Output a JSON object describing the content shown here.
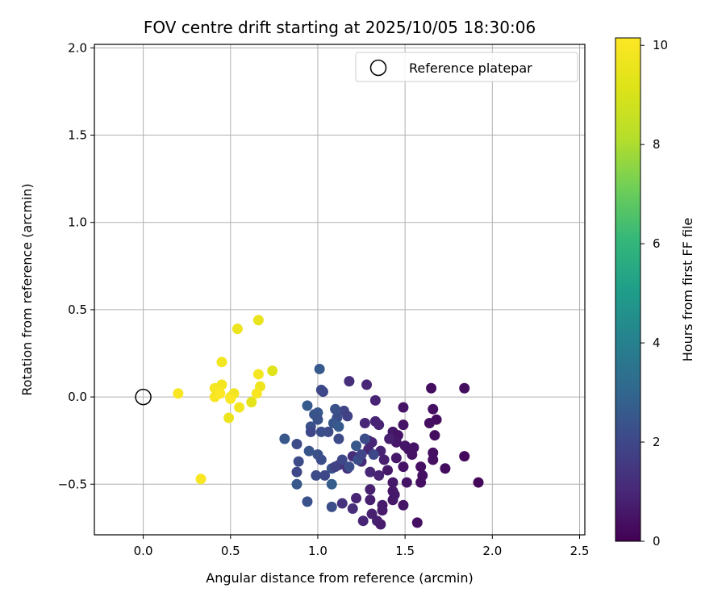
{
  "chart_data": {
    "type": "scatter",
    "title": "FOV centre drift starting at 2025/10/05 18:30:06",
    "xlabel": "Angular distance from reference (arcmin)",
    "ylabel": "Rotation from reference (arcmin)",
    "xlim": [
      -0.28,
      2.53
    ],
    "ylim": [
      -0.79,
      2.02
    ],
    "xticks": [
      0.0,
      0.5,
      1.0,
      1.5,
      2.0,
      2.5
    ],
    "xtick_labels": [
      "0.0",
      "0.5",
      "1.0",
      "1.5",
      "2.0",
      "2.5"
    ],
    "yticks": [
      -0.5,
      0.0,
      0.5,
      1.0,
      1.5,
      2.0
    ],
    "ytick_labels": [
      "−0.5",
      "0.0",
      "0.5",
      "1.0",
      "1.5",
      "2.0"
    ],
    "grid": true,
    "legend": {
      "position": "top-right",
      "entries": [
        "Reference platepar"
      ]
    },
    "reference": {
      "x": 0.0,
      "y": 0.0,
      "label": "Reference platepar"
    },
    "colorbar": {
      "label": "Hours from first FF file",
      "range": [
        0,
        10.15
      ],
      "ticks": [
        0,
        2,
        4,
        6,
        8,
        10
      ],
      "tick_labels": [
        "0",
        "2",
        "4",
        "6",
        "8",
        "10"
      ],
      "colormap": "viridis"
    },
    "points": [
      {
        "x": 1.65,
        "y": 0.05,
        "h": 0.3
      },
      {
        "x": 1.84,
        "y": 0.05,
        "h": 0.3
      },
      {
        "x": 1.49,
        "y": -0.06,
        "h": 0.5
      },
      {
        "x": 1.66,
        "y": -0.07,
        "h": 0.4
      },
      {
        "x": 1.68,
        "y": -0.13,
        "h": 0.3
      },
      {
        "x": 1.64,
        "y": -0.15,
        "h": 0.4
      },
      {
        "x": 1.49,
        "y": -0.16,
        "h": 0.5
      },
      {
        "x": 1.43,
        "y": -0.2,
        "h": 0.6
      },
      {
        "x": 1.46,
        "y": -0.22,
        "h": 0.5
      },
      {
        "x": 1.67,
        "y": -0.22,
        "h": 0.3
      },
      {
        "x": 1.45,
        "y": -0.26,
        "h": 0.6
      },
      {
        "x": 1.5,
        "y": -0.28,
        "h": 0.5
      },
      {
        "x": 1.52,
        "y": -0.3,
        "h": 0.5
      },
      {
        "x": 1.55,
        "y": -0.29,
        "h": 0.5
      },
      {
        "x": 1.66,
        "y": -0.32,
        "h": 0.4
      },
      {
        "x": 1.54,
        "y": -0.33,
        "h": 0.5
      },
      {
        "x": 1.45,
        "y": -0.35,
        "h": 0.6
      },
      {
        "x": 1.66,
        "y": -0.36,
        "h": 0.4
      },
      {
        "x": 1.84,
        "y": -0.34,
        "h": 0.2
      },
      {
        "x": 1.49,
        "y": -0.4,
        "h": 0.5
      },
      {
        "x": 1.59,
        "y": -0.4,
        "h": 0.4
      },
      {
        "x": 1.73,
        "y": -0.41,
        "h": 0.3
      },
      {
        "x": 1.4,
        "y": -0.42,
        "h": 0.6
      },
      {
        "x": 1.6,
        "y": -0.45,
        "h": 0.4
      },
      {
        "x": 1.59,
        "y": -0.49,
        "h": 0.4
      },
      {
        "x": 1.51,
        "y": -0.49,
        "h": 0.5
      },
      {
        "x": 1.43,
        "y": -0.49,
        "h": 0.6
      },
      {
        "x": 1.92,
        "y": -0.49,
        "h": 0.2
      },
      {
        "x": 1.43,
        "y": -0.54,
        "h": 0.6
      },
      {
        "x": 1.3,
        "y": -0.53,
        "h": 0.8
      },
      {
        "x": 1.44,
        "y": -0.56,
        "h": 0.6
      },
      {
        "x": 1.22,
        "y": -0.58,
        "h": 0.9
      },
      {
        "x": 1.43,
        "y": -0.59,
        "h": 0.6
      },
      {
        "x": 1.3,
        "y": -0.59,
        "h": 0.8
      },
      {
        "x": 1.49,
        "y": -0.62,
        "h": 0.5
      },
      {
        "x": 1.37,
        "y": -0.62,
        "h": 0.7
      },
      {
        "x": 1.37,
        "y": -0.65,
        "h": 0.7
      },
      {
        "x": 1.31,
        "y": -0.67,
        "h": 0.8
      },
      {
        "x": 1.26,
        "y": -0.71,
        "h": 0.9
      },
      {
        "x": 1.34,
        "y": -0.71,
        "h": 0.8
      },
      {
        "x": 1.57,
        "y": -0.72,
        "h": 0.4
      },
      {
        "x": 1.36,
        "y": -0.73,
        "h": 0.7
      },
      {
        "x": 1.18,
        "y": 0.09,
        "h": 1.2
      },
      {
        "x": 1.28,
        "y": 0.07,
        "h": 1.0
      },
      {
        "x": 1.33,
        "y": -0.02,
        "h": 0.9
      },
      {
        "x": 1.33,
        "y": -0.14,
        "h": 0.9
      },
      {
        "x": 1.27,
        "y": -0.15,
        "h": 1.0
      },
      {
        "x": 1.35,
        "y": -0.16,
        "h": 0.9
      },
      {
        "x": 1.41,
        "y": -0.24,
        "h": 0.8
      },
      {
        "x": 1.29,
        "y": -0.25,
        "h": 1.1
      },
      {
        "x": 1.31,
        "y": -0.26,
        "h": 1.0
      },
      {
        "x": 1.36,
        "y": -0.31,
        "h": 0.9
      },
      {
        "x": 1.29,
        "y": -0.3,
        "h": 1.0
      },
      {
        "x": 1.38,
        "y": -0.36,
        "h": 0.8
      },
      {
        "x": 1.25,
        "y": -0.37,
        "h": 1.1
      },
      {
        "x": 1.2,
        "y": -0.34,
        "h": 1.2
      },
      {
        "x": 1.3,
        "y": -0.43,
        "h": 1.0
      },
      {
        "x": 1.35,
        "y": -0.45,
        "h": 0.9
      },
      {
        "x": 1.17,
        "y": -0.41,
        "h": 1.3
      },
      {
        "x": 1.12,
        "y": -0.39,
        "h": 1.3
      },
      {
        "x": 1.2,
        "y": -0.64,
        "h": 1.2
      },
      {
        "x": 1.14,
        "y": -0.61,
        "h": 1.3
      },
      {
        "x": 0.94,
        "y": -0.6,
        "h": 2.3
      },
      {
        "x": 1.01,
        "y": 0.16,
        "h": 2.6
      },
      {
        "x": 1.02,
        "y": 0.04,
        "h": 2.1
      },
      {
        "x": 1.03,
        "y": 0.03,
        "h": 2.0
      },
      {
        "x": 1.15,
        "y": -0.08,
        "h": 1.9
      },
      {
        "x": 1.1,
        "y": -0.07,
        "h": 2.3
      },
      {
        "x": 1.17,
        "y": -0.11,
        "h": 1.8
      },
      {
        "x": 1.11,
        "y": -0.12,
        "h": 2.2
      },
      {
        "x": 1.0,
        "y": -0.09,
        "h": 2.5
      },
      {
        "x": 0.98,
        "y": -0.1,
        "h": 2.4
      },
      {
        "x": 1.0,
        "y": -0.13,
        "h": 2.3
      },
      {
        "x": 0.94,
        "y": -0.05,
        "h": 2.6
      },
      {
        "x": 1.09,
        "y": -0.15,
        "h": 2.4
      },
      {
        "x": 1.12,
        "y": -0.17,
        "h": 2.6
      },
      {
        "x": 1.06,
        "y": -0.2,
        "h": 2.1
      },
      {
        "x": 1.02,
        "y": -0.2,
        "h": 2.2
      },
      {
        "x": 0.96,
        "y": -0.17,
        "h": 2.3
      },
      {
        "x": 0.96,
        "y": -0.2,
        "h": 2.0
      },
      {
        "x": 1.12,
        "y": -0.24,
        "h": 2.1
      },
      {
        "x": 0.81,
        "y": -0.24,
        "h": 2.5
      },
      {
        "x": 0.88,
        "y": -0.27,
        "h": 2.1
      },
      {
        "x": 1.22,
        "y": -0.28,
        "h": 2.5
      },
      {
        "x": 1.27,
        "y": -0.24,
        "h": 2.2
      },
      {
        "x": 0.95,
        "y": -0.31,
        "h": 2.4
      },
      {
        "x": 1.0,
        "y": -0.33,
        "h": 2.3
      },
      {
        "x": 1.02,
        "y": -0.36,
        "h": 2.2
      },
      {
        "x": 1.14,
        "y": -0.36,
        "h": 2.0
      },
      {
        "x": 1.23,
        "y": -0.36,
        "h": 2.2
      },
      {
        "x": 0.89,
        "y": -0.37,
        "h": 2.1
      },
      {
        "x": 1.08,
        "y": -0.41,
        "h": 2.3
      },
      {
        "x": 1.18,
        "y": -0.4,
        "h": 2.2
      },
      {
        "x": 1.25,
        "y": -0.33,
        "h": 1.9
      },
      {
        "x": 1.32,
        "y": -0.33,
        "h": 2.0
      },
      {
        "x": 1.1,
        "y": -0.4,
        "h": 1.8
      },
      {
        "x": 0.88,
        "y": -0.43,
        "h": 2.0
      },
      {
        "x": 0.99,
        "y": -0.45,
        "h": 2.1
      },
      {
        "x": 1.04,
        "y": -0.45,
        "h": 2.0
      },
      {
        "x": 1.08,
        "y": -0.5,
        "h": 2.7
      },
      {
        "x": 0.88,
        "y": -0.5,
        "h": 2.5
      },
      {
        "x": 1.08,
        "y": -0.63,
        "h": 2.2
      },
      {
        "x": 0.45,
        "y": 0.2,
        "h": 9.8
      },
      {
        "x": 0.66,
        "y": 0.44,
        "h": 9.5
      },
      {
        "x": 0.54,
        "y": 0.39,
        "h": 9.6
      },
      {
        "x": 0.74,
        "y": 0.15,
        "h": 9.2
      },
      {
        "x": 0.66,
        "y": 0.13,
        "h": 9.9
      },
      {
        "x": 0.67,
        "y": 0.06,
        "h": 9.7
      },
      {
        "x": 0.65,
        "y": 0.02,
        "h": 10.0
      },
      {
        "x": 0.62,
        "y": -0.03,
        "h": 9.4
      },
      {
        "x": 0.55,
        "y": -0.06,
        "h": 9.8
      },
      {
        "x": 0.49,
        "y": -0.12,
        "h": 9.6
      },
      {
        "x": 0.45,
        "y": 0.07,
        "h": 9.8
      },
      {
        "x": 0.43,
        "y": 0.04,
        "h": 10.0
      },
      {
        "x": 0.41,
        "y": 0.05,
        "h": 9.9
      },
      {
        "x": 0.41,
        "y": 0.0,
        "h": 10.0
      },
      {
        "x": 0.44,
        "y": 0.02,
        "h": 10.1
      },
      {
        "x": 0.5,
        "y": 0.0,
        "h": 9.9
      },
      {
        "x": 0.52,
        "y": 0.02,
        "h": 9.8
      },
      {
        "x": 0.5,
        "y": -0.01,
        "h": 10.1
      },
      {
        "x": 0.2,
        "y": 0.02,
        "h": 10.0
      },
      {
        "x": 0.33,
        "y": -0.47,
        "h": 10.0
      }
    ]
  }
}
